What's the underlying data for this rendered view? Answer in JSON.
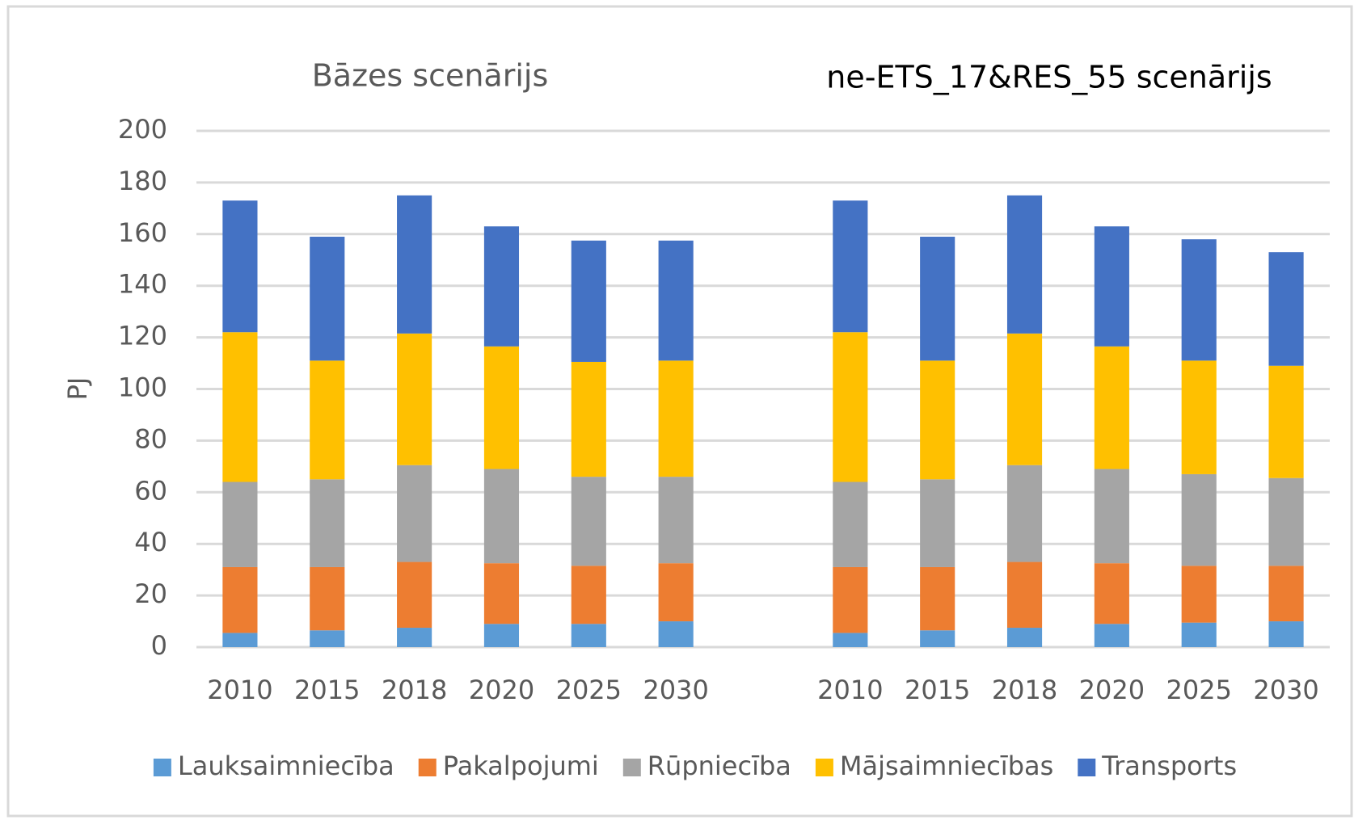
{
  "chart_data": {
    "type": "stacked_bar",
    "annotations": [
      "Bāzes scenārijs",
      "ne-ETS_17&RES_55 scenārijs"
    ],
    "y_label": "PJ",
    "categories": [
      "2010",
      "2015",
      "2018",
      "2020",
      "2025",
      "2030",
      null,
      "2010",
      "2015",
      "2018",
      "2020",
      "2025",
      "2030"
    ],
    "series": [
      {
        "name": "Lauksaimniecība",
        "color": "#5b9bd5",
        "values": [
          5.5,
          6.5,
          7.5,
          9,
          9,
          10,
          null,
          5.5,
          6.5,
          7.5,
          9,
          9.5,
          10
        ]
      },
      {
        "name": "Pakalpojumi",
        "color": "#ed7d31",
        "values": [
          25.5,
          24.5,
          25.5,
          23.5,
          22.5,
          22.5,
          null,
          25.5,
          24.5,
          25.5,
          23.5,
          22,
          21.5
        ]
      },
      {
        "name": "Rūpniecība",
        "color": "#a5a5a5",
        "values": [
          33,
          34,
          37.5,
          36.5,
          34.5,
          33.5,
          null,
          33,
          34,
          37.5,
          36.5,
          35.5,
          34
        ]
      },
      {
        "name": "Mājsaimniecības",
        "color": "#ffc000",
        "values": [
          58,
          46,
          51,
          47.5,
          44.5,
          45,
          null,
          58,
          46,
          51,
          47.5,
          44,
          43.5
        ]
      },
      {
        "name": "Transports",
        "color": "#4472c4",
        "values": [
          51,
          48,
          53.5,
          46.5,
          47,
          46.5,
          null,
          51,
          48,
          53.5,
          46.5,
          47,
          44
        ]
      }
    ],
    "ylim": [
      0,
      200
    ],
    "yticks": [
      0,
      20,
      40,
      60,
      80,
      100,
      120,
      140,
      160,
      180,
      200
    ],
    "grid": true,
    "legend": "bottom"
  }
}
